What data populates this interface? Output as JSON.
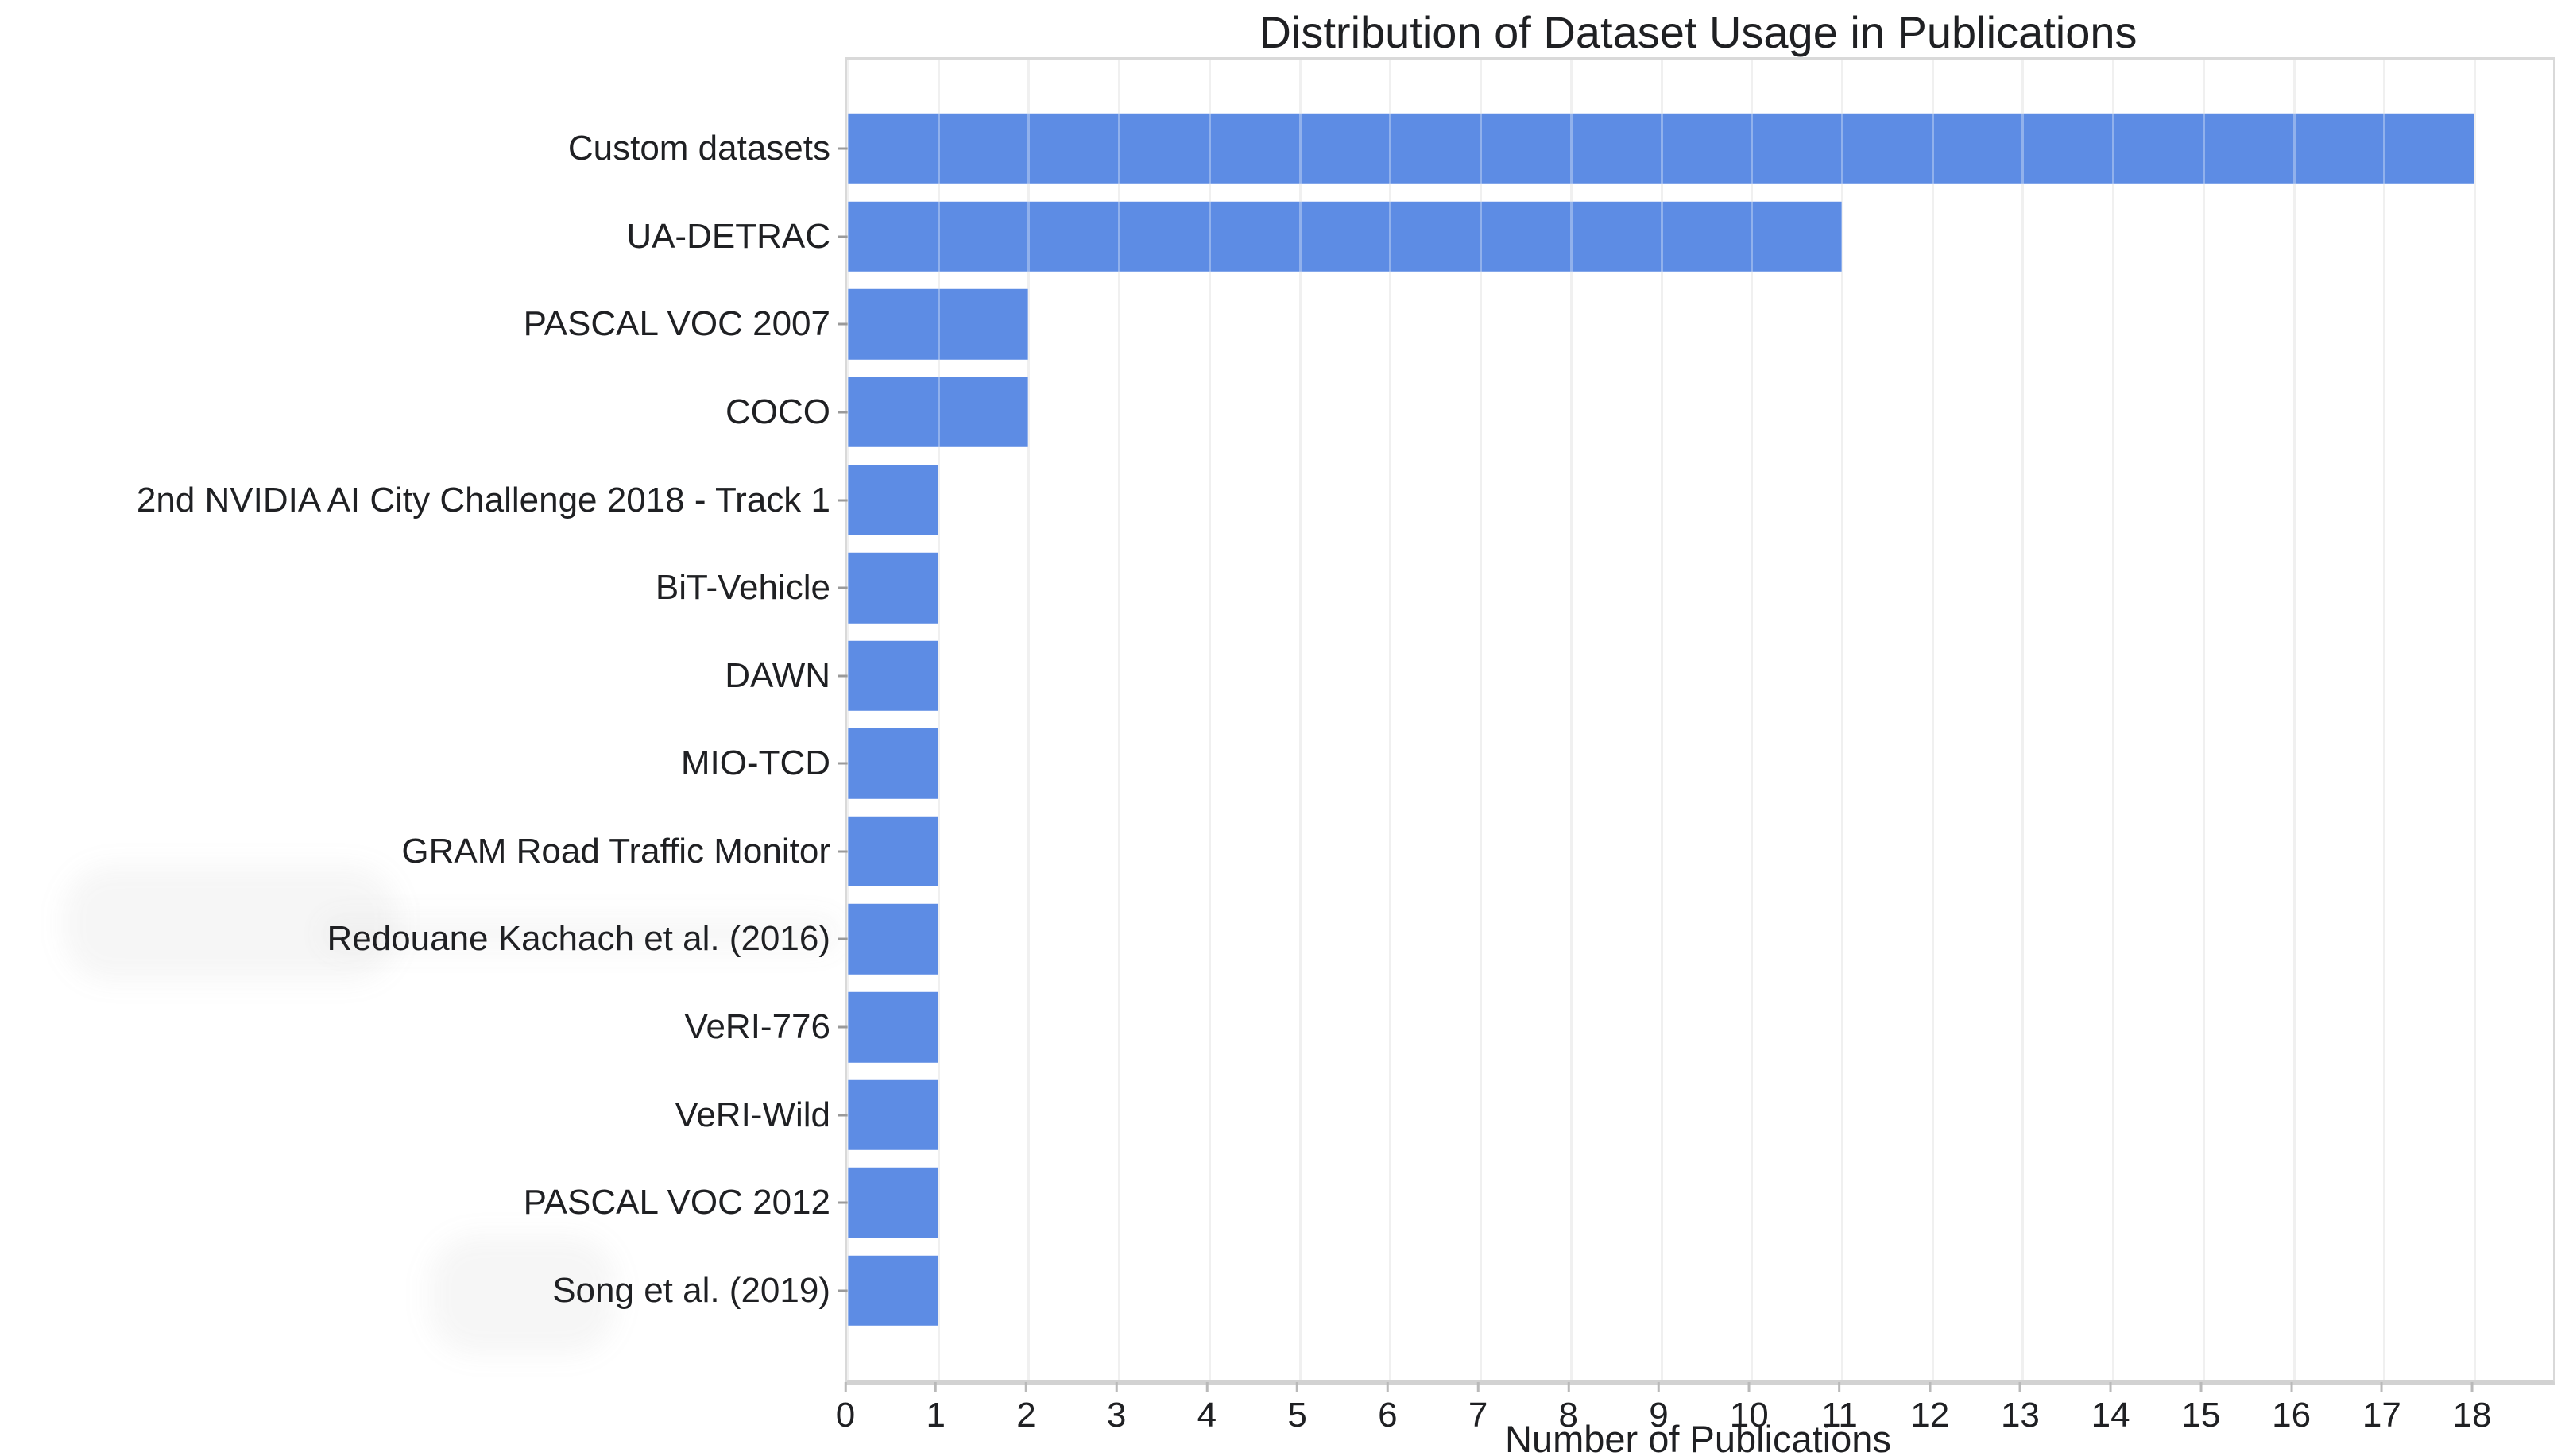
{
  "chart_data": {
    "type": "bar",
    "orientation": "horizontal",
    "title": "Distribution of Dataset Usage in Publications",
    "xlabel": "Number of Publications",
    "ylabel": "",
    "categories": [
      "Custom datasets",
      "UA-DETRAC",
      "PASCAL VOC 2007",
      "COCO",
      "2nd NVIDIA AI City Challenge 2018 - Track 1",
      "BiT-Vehicle",
      "DAWN",
      "MIO-TCD",
      "GRAM Road Traffic Monitor",
      "Redouane Kachach et al. (2016)",
      "VeRI-776",
      "VeRI-Wild",
      "PASCAL VOC 2012",
      "Song et al. (2019)"
    ],
    "values": [
      18,
      11,
      2,
      2,
      1,
      1,
      1,
      1,
      1,
      1,
      1,
      1,
      1,
      1
    ],
    "x_ticks": [
      0,
      1,
      2,
      3,
      4,
      5,
      6,
      7,
      8,
      9,
      10,
      11,
      12,
      13,
      14,
      15,
      16,
      17,
      18
    ],
    "xlim": [
      0,
      18.87
    ],
    "grid": "vertical",
    "legend": "none"
  },
  "colors": {
    "bar": "#5d8ce4",
    "gridline": "#e9e9e9",
    "plot_border": "#d9d9d9",
    "axis_line": "#d2d2d2",
    "text": "#1f2023",
    "background": "#ffffff"
  }
}
